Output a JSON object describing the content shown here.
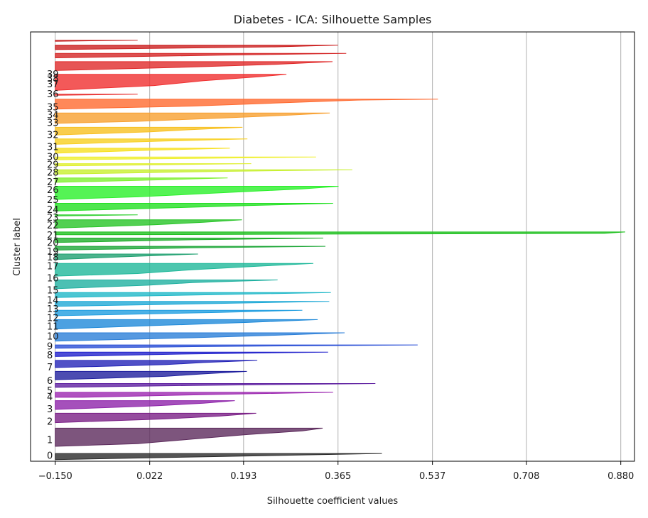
{
  "chart_data": {
    "type": "silhouette",
    "title": "Diabetes - ICA: Silhouette Samples",
    "xlabel": "Silhouette coefficient values",
    "ylabel": "Cluster label",
    "xlim": [
      -0.195,
      0.905
    ],
    "xticks": [
      -0.15,
      0.022,
      0.193,
      0.365,
      0.537,
      0.708,
      0.88
    ],
    "xtick_labels": [
      "−0.150",
      "0.022",
      "0.193",
      "0.365",
      "0.537",
      "0.708",
      "0.880"
    ],
    "grid": "x",
    "clusters": [
      {
        "label": "0",
        "color": "#2b2b2b",
        "ystart": 0.0,
        "yend": 0.55,
        "profile": [
          [
            0,
            0.445
          ]
        ]
      },
      {
        "label": "1",
        "color": "#5c2a5c",
        "ystart": 1.2,
        "yend": 2.85,
        "profile": [
          [
            0,
            0.337
          ],
          [
            0.15,
            0.3
          ],
          [
            0.35,
            0.2
          ],
          [
            0.6,
            0.1
          ],
          [
            0.85,
            0.0
          ],
          [
            1,
            -0.15
          ]
        ]
      },
      {
        "label": "2",
        "color": "#7a1f86",
        "ystart": 3.35,
        "yend": 4.2,
        "profile": [
          [
            0,
            0.216
          ],
          [
            0.3,
            0.15
          ],
          [
            0.6,
            0.05
          ],
          [
            1,
            -0.15
          ]
        ]
      },
      {
        "label": "3",
        "color": "#8e24aa",
        "ystart": 4.55,
        "yend": 5.35,
        "profile": [
          [
            0,
            0.177
          ],
          [
            0.3,
            0.12
          ],
          [
            0.6,
            0.03
          ],
          [
            1,
            -0.15
          ]
        ]
      },
      {
        "label": "4",
        "color": "#9c27b0",
        "ystart": 5.65,
        "yend": 6.1,
        "profile": [
          [
            0,
            0.356
          ],
          [
            0.4,
            0.15
          ],
          [
            1,
            -0.1
          ]
        ]
      },
      {
        "label": "5",
        "color": "#5e1fa0",
        "ystart": 6.55,
        "yend": 6.9,
        "profile": [
          [
            0,
            0.433
          ],
          [
            0.5,
            0.1
          ],
          [
            1,
            -0.15
          ]
        ]
      },
      {
        "label": "6",
        "color": "#1f1f9e",
        "ystart": 7.25,
        "yend": 8.0,
        "profile": [
          [
            0,
            0.199
          ],
          [
            0.3,
            0.12
          ],
          [
            0.6,
            0.05
          ],
          [
            1,
            -0.15
          ]
        ]
      },
      {
        "label": "7",
        "color": "#2424b8",
        "ystart": 8.35,
        "yend": 9.0,
        "profile": [
          [
            0,
            0.218
          ],
          [
            0.3,
            0.12
          ],
          [
            0.6,
            0.05
          ],
          [
            1,
            -0.15
          ]
        ]
      },
      {
        "label": "8",
        "color": "#2020cc",
        "ystart": 9.35,
        "yend": 9.75,
        "profile": [
          [
            0,
            0.347
          ],
          [
            0.4,
            0.1
          ],
          [
            1,
            -0.15
          ]
        ]
      },
      {
        "label": "9",
        "color": "#2a4fd6",
        "ystart": 10.1,
        "yend": 10.4,
        "profile": [
          [
            0,
            0.51
          ],
          [
            0.5,
            0.1
          ],
          [
            1,
            -0.15
          ]
        ]
      },
      {
        "label": "10",
        "color": "#2c7fd8",
        "ystart": 10.75,
        "yend": 11.5,
        "profile": [
          [
            0,
            0.377
          ],
          [
            0.3,
            0.25
          ],
          [
            0.6,
            0.1
          ],
          [
            1,
            -0.15
          ]
        ]
      },
      {
        "label": "11",
        "color": "#1f8ad9",
        "ystart": 11.85,
        "yend": 12.7,
        "profile": [
          [
            0,
            0.328
          ],
          [
            0.3,
            0.2
          ],
          [
            0.6,
            0.05
          ],
          [
            1,
            -0.15
          ]
        ]
      },
      {
        "label": "12",
        "color": "#1f9ee0",
        "ystart": 13.05,
        "yend": 13.55,
        "profile": [
          [
            0,
            0.3
          ],
          [
            0.4,
            0.15
          ],
          [
            1,
            -0.15
          ]
        ]
      },
      {
        "label": "13",
        "color": "#1fa9d6",
        "ystart": 13.9,
        "yend": 14.35,
        "profile": [
          [
            0,
            0.349
          ],
          [
            0.4,
            0.15
          ],
          [
            1,
            -0.15
          ]
        ]
      },
      {
        "label": "14",
        "color": "#1fb8c8",
        "ystart": 14.7,
        "yend": 15.15,
        "profile": [
          [
            0,
            0.352
          ],
          [
            0.4,
            0.15
          ],
          [
            1,
            -0.15
          ]
        ]
      },
      {
        "label": "15",
        "color": "#1fb0a0",
        "ystart": 15.5,
        "yend": 16.3,
        "profile": [
          [
            0,
            0.255
          ],
          [
            0.3,
            0.1
          ],
          [
            0.6,
            0.02
          ],
          [
            1,
            -0.15
          ]
        ]
      },
      {
        "label": "16",
        "color": "#1fb89a",
        "ystart": 16.65,
        "yend": 17.8,
        "profile": [
          [
            0,
            0.32
          ],
          [
            0.2,
            0.23
          ],
          [
            0.5,
            0.1
          ],
          [
            0.8,
            0.0
          ],
          [
            1,
            -0.15
          ]
        ]
      },
      {
        "label": "17",
        "color": "#1fa070",
        "ystart": 18.15,
        "yend": 18.65,
        "profile": [
          [
            0,
            0.11
          ],
          [
            0.4,
            0.0
          ],
          [
            1,
            -0.15
          ]
        ]
      },
      {
        "label": "18",
        "color": "#1fa83a",
        "ystart": 19.0,
        "yend": 19.35,
        "profile": [
          [
            0,
            0.342
          ],
          [
            0.4,
            0.1
          ],
          [
            1,
            -0.15
          ]
        ]
      },
      {
        "label": "19",
        "color": "#1fae2a",
        "ystart": 19.7,
        "yend": 20.1,
        "profile": [
          [
            0,
            0.338
          ],
          [
            0.4,
            0.1
          ],
          [
            1,
            -0.15
          ]
        ]
      },
      {
        "label": "20",
        "color": "#1fc01f",
        "ystart": 20.4,
        "yend": 20.65,
        "profile": [
          [
            0,
            0.888
          ],
          [
            0.5,
            0.85
          ],
          [
            1,
            -0.1
          ]
        ]
      },
      {
        "label": "21",
        "color": "#27c427",
        "ystart": 21.0,
        "yend": 21.75,
        "profile": [
          [
            0,
            0.19
          ],
          [
            0.3,
            0.12
          ],
          [
            0.6,
            0.03
          ],
          [
            1,
            -0.15
          ]
        ]
      },
      {
        "label": "22",
        "color": "#30d030",
        "ystart": 22.1,
        "yend": 22.2,
        "profile": [
          [
            0,
            0.0
          ],
          [
            1,
            -0.15
          ]
        ]
      },
      {
        "label": "23",
        "color": "#22e022",
        "ystart": 22.55,
        "yend": 23.25,
        "profile": [
          [
            0,
            0.356
          ],
          [
            0.3,
            0.2
          ],
          [
            0.6,
            0.05
          ],
          [
            1,
            -0.15
          ]
        ]
      },
      {
        "label": "24",
        "color": "#2af02a",
        "ystart": 23.6,
        "yend": 24.8,
        "profile": [
          [
            0,
            0.366
          ],
          [
            0.2,
            0.3
          ],
          [
            0.5,
            0.15
          ],
          [
            0.8,
            0.0
          ],
          [
            1,
            -0.15
          ]
        ]
      },
      {
        "label": "25",
        "color": "#80f030",
        "ystart": 25.15,
        "yend": 25.55,
        "profile": [
          [
            0,
            0.164
          ],
          [
            0.4,
            0.05
          ],
          [
            1,
            -0.15
          ]
        ]
      },
      {
        "label": "26",
        "color": "#c8f030",
        "ystart": 25.9,
        "yend": 26.3,
        "profile": [
          [
            0,
            0.391
          ],
          [
            0.4,
            0.15
          ],
          [
            1,
            -0.15
          ]
        ]
      },
      {
        "label": "27",
        "color": "#e0f030",
        "ystart": 26.65,
        "yend": 26.85,
        "profile": [
          [
            0,
            0.207
          ],
          [
            0.5,
            0.05
          ],
          [
            1,
            -0.15
          ]
        ]
      },
      {
        "label": "28",
        "color": "#f0f030",
        "ystart": 27.2,
        "yend": 27.45,
        "profile": [
          [
            0,
            0.325
          ],
          [
            0.5,
            0.1
          ],
          [
            1,
            -0.15
          ]
        ]
      },
      {
        "label": "29",
        "color": "#f8e020",
        "ystart": 27.8,
        "yend": 28.25,
        "profile": [
          [
            0,
            0.168
          ],
          [
            0.4,
            0.02
          ],
          [
            1,
            -0.15
          ]
        ]
      },
      {
        "label": "30",
        "color": "#f8d020",
        "ystart": 28.6,
        "yend": 29.1,
        "profile": [
          [
            0,
            0.2
          ],
          [
            0.4,
            0.05
          ],
          [
            1,
            -0.15
          ]
        ]
      },
      {
        "label": "31",
        "color": "#f8c020",
        "ystart": 29.45,
        "yend": 30.15,
        "profile": [
          [
            0,
            0.191
          ],
          [
            0.3,
            0.1
          ],
          [
            0.6,
            0.02
          ],
          [
            1,
            -0.15
          ]
        ]
      },
      {
        "label": "32",
        "color": "#f8a030",
        "ystart": 30.5,
        "yend": 31.45,
        "profile": [
          [
            0,
            0.35
          ],
          [
            0.2,
            0.28
          ],
          [
            0.5,
            0.15
          ],
          [
            0.8,
            0.0
          ],
          [
            1,
            -0.15
          ]
        ]
      },
      {
        "label": "33",
        "color": "#ff6a30",
        "ystart": 31.8,
        "yend": 32.7,
        "profile": [
          [
            0,
            0.547
          ],
          [
            0.1,
            0.4
          ],
          [
            0.4,
            0.25
          ],
          [
            0.7,
            0.1
          ],
          [
            1,
            -0.15
          ]
        ]
      },
      {
        "label": "34",
        "color": "#e83030",
        "ystart": 33.05,
        "yend": 33.15,
        "profile": [
          [
            0,
            0.0
          ],
          [
            1,
            -0.15
          ]
        ]
      },
      {
        "label": "35",
        "color": "#f03030",
        "ystart": 33.5,
        "yend": 34.95,
        "profile": [
          [
            0,
            0.271
          ],
          [
            0.15,
            0.22
          ],
          [
            0.4,
            0.12
          ],
          [
            0.7,
            0.03
          ],
          [
            1,
            -0.15
          ]
        ]
      },
      {
        "label": "36",
        "color": "#e02a2a",
        "ystart": 35.3,
        "yend": 36.1,
        "profile": [
          [
            0,
            0.355
          ],
          [
            0.3,
            0.25
          ],
          [
            0.6,
            0.1
          ],
          [
            1,
            -0.15
          ]
        ]
      },
      {
        "label": "37",
        "color": "#d42424",
        "ystart": 36.45,
        "yend": 36.85,
        "profile": [
          [
            0,
            0.38
          ],
          [
            0.4,
            0.15
          ],
          [
            1,
            -0.15
          ]
        ]
      },
      {
        "label": "38",
        "color": "#cc2020",
        "ystart": 37.2,
        "yend": 37.6,
        "profile": [
          [
            0,
            0.365
          ],
          [
            0.4,
            0.25
          ],
          [
            1,
            -0.15
          ]
        ]
      },
      {
        "label": "39",
        "color": "#c83030",
        "ystart": 37.95,
        "yend": 38.05,
        "profile": [
          [
            0,
            0.0
          ],
          [
            1,
            -0.15
          ]
        ]
      }
    ],
    "ylim": [
      -0.15,
      38.8
    ],
    "cluster_label_positions": [
      0.4,
      1.8,
      3.5,
      4.6,
      5.7,
      6.3,
      7.2,
      8.4,
      9.5,
      10.3,
      11.2,
      12.1,
      12.9,
      13.7,
      14.5,
      15.4,
      16.5,
      17.6,
      18.4,
      18.9,
      19.7,
      20.4,
      21.3,
      22.0,
      22.7,
      23.6,
      24.5,
      25.2,
      26.1,
      26.8,
      27.5,
      28.4,
      29.5,
      30.6,
      31.3,
      32.0,
      33.2,
      34.1,
      34.6,
      35.0
    ]
  }
}
